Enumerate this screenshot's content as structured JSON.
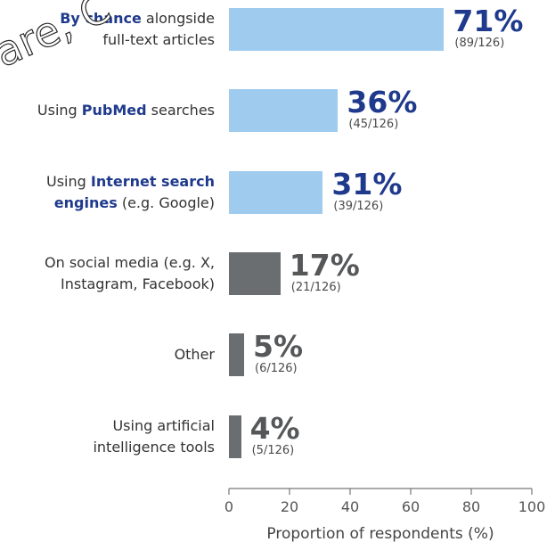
{
  "watermark": "are, C",
  "chart_data": {
    "type": "bar",
    "orientation": "horizontal",
    "xlabel": "Proportion of respondents (%)",
    "xlim": [
      0,
      100
    ],
    "xticks": [
      0,
      20,
      40,
      60,
      80,
      100
    ],
    "colors": {
      "highlight": "#9fcbee",
      "other": "#6b6e70",
      "emphasis_text": "#1f3a8c"
    },
    "rows": [
      {
        "parts": [
          {
            "t": "By chance",
            "b": true
          },
          {
            "t": " alongside",
            "b": false
          },
          {
            "br": true
          },
          {
            "t": "full-text articles",
            "b": false
          }
        ],
        "value": 71,
        "pct_label": "71%",
        "count_label": "(89/126)",
        "group": "highlight"
      },
      {
        "parts": [
          {
            "t": "Using ",
            "b": false
          },
          {
            "t": "PubMed",
            "b": true
          },
          {
            "t": " searches",
            "b": false
          }
        ],
        "value": 36,
        "pct_label": "36%",
        "count_label": "(45/126)",
        "group": "highlight"
      },
      {
        "parts": [
          {
            "t": "Using ",
            "b": false
          },
          {
            "t": "Internet search",
            "b": true
          },
          {
            "br": true
          },
          {
            "t": "engines",
            "b": true
          },
          {
            "t": " (e.g. Google)",
            "b": false
          }
        ],
        "value": 31,
        "pct_label": "31%",
        "count_label": "(39/126)",
        "group": "highlight"
      },
      {
        "parts": [
          {
            "t": "On social media (e.g. X,",
            "b": false
          },
          {
            "br": true
          },
          {
            "t": "Instagram, Facebook)",
            "b": false
          }
        ],
        "value": 17,
        "pct_label": "17%",
        "count_label": "(21/126)",
        "group": "other"
      },
      {
        "parts": [
          {
            "t": "Other",
            "b": false
          }
        ],
        "value": 5,
        "pct_label": "5%",
        "count_label": "(6/126)",
        "group": "other"
      },
      {
        "parts": [
          {
            "t": "Using artificial",
            "b": false
          },
          {
            "br": true
          },
          {
            "t": "intelligence tools",
            "b": false
          }
        ],
        "value": 4,
        "pct_label": "4%",
        "count_label": "(5/126)",
        "group": "other"
      }
    ]
  }
}
